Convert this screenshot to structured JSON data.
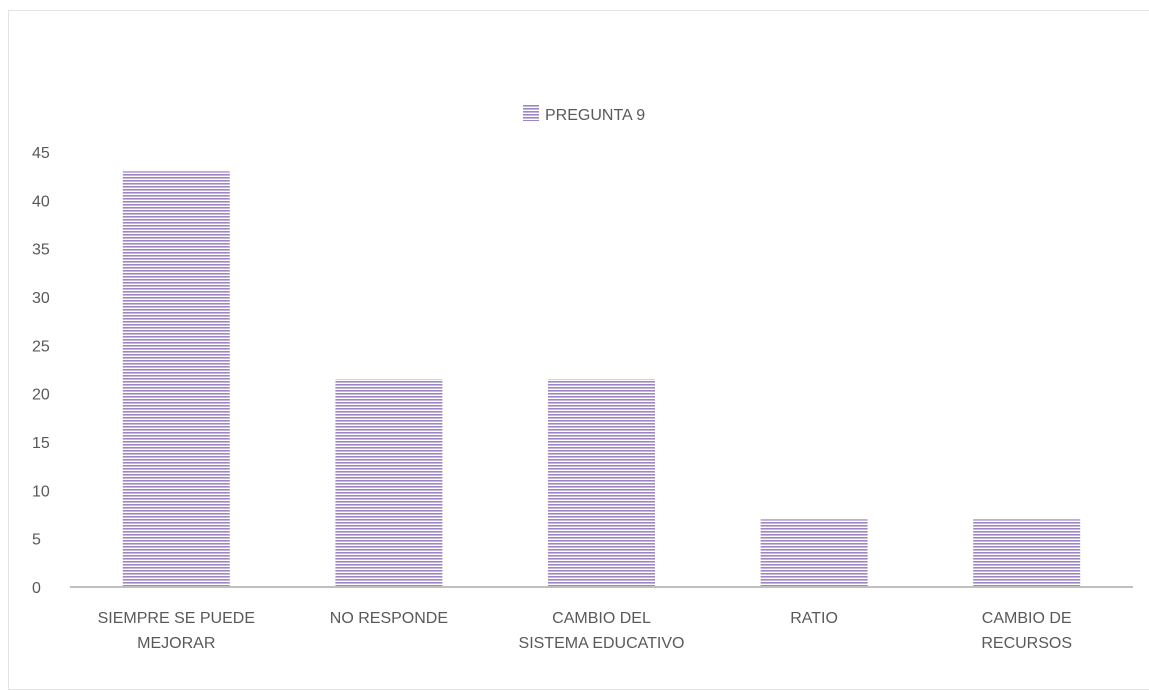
{
  "chart_data": {
    "type": "bar",
    "categories": [
      [
        "SIEMPRE SE PUEDE",
        "MEJORAR"
      ],
      [
        "NO RESPONDE"
      ],
      [
        "CAMBIO DEL",
        "SISTEMA EDUCATIVO"
      ],
      [
        "RATIO"
      ],
      [
        "CAMBIO DE",
        "RECURSOS"
      ]
    ],
    "series": [
      {
        "name": "PREGUNTA 9",
        "values": [
          43,
          21.5,
          21.5,
          7,
          7
        ]
      }
    ],
    "title": "",
    "xlabel": "",
    "ylabel": "",
    "ylim": [
      0,
      45
    ],
    "yticks": [
      0,
      5,
      10,
      15,
      20,
      25,
      30,
      35,
      40,
      45
    ],
    "grid": false,
    "legend_position": "top-center",
    "colors": {
      "bar_stripe": "#9e86c6",
      "bar_background": "#ffffff",
      "axis": "#bfbfbf",
      "text": "#595959"
    }
  }
}
